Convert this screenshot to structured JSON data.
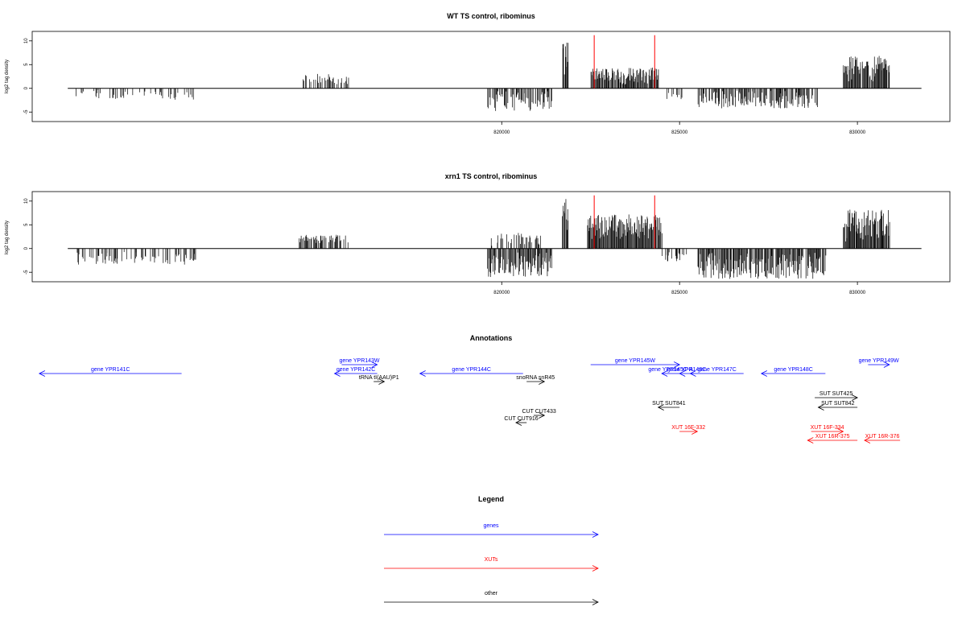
{
  "chart_data": [
    {
      "type": "bar",
      "title": "WT TS control, ribominus",
      "ylabel": "log2 tag density",
      "xlabel": "",
      "ylim": [
        -7,
        12
      ],
      "xlim": [
        806800,
        832600
      ],
      "yticks": [
        -5,
        0,
        5,
        10
      ],
      "xticks": [
        820000,
        825000,
        830000
      ],
      "xtick_labels": [
        "820000",
        "825000",
        "830000"
      ],
      "ytick_labels": [
        "-5",
        "0",
        "5",
        "10"
      ],
      "grid": false,
      "highlight_positions": [
        822600,
        824300
      ],
      "highlight_color": "#ff0000",
      "bar_color": "#000000",
      "segments": [
        {
          "start": 808000,
          "end": 811400,
          "sign": -1,
          "min": 0.3,
          "max": 2.4,
          "density": 0.25,
          "seed": 1
        },
        {
          "start": 814300,
          "end": 815700,
          "sign": 1,
          "min": 0.8,
          "max": 3.1,
          "density": 0.55,
          "seed": 2
        },
        {
          "start": 819600,
          "end": 821400,
          "sign": -1,
          "min": 0.5,
          "max": 5.0,
          "density": 0.7,
          "seed": 3
        },
        {
          "start": 821700,
          "end": 821870,
          "sign": 1,
          "min": 2.5,
          "max": 10.8,
          "density": 1.0,
          "seed": 4
        },
        {
          "start": 822500,
          "end": 824400,
          "sign": 1,
          "min": 0.8,
          "max": 4.4,
          "density": 0.95,
          "seed": 5
        },
        {
          "start": 824600,
          "end": 825100,
          "sign": -1,
          "min": 0.5,
          "max": 2.5,
          "density": 0.3,
          "seed": 6
        },
        {
          "start": 825500,
          "end": 828900,
          "sign": -1,
          "min": 0.5,
          "max": 4.3,
          "density": 0.7,
          "seed": 7
        },
        {
          "start": 829600,
          "end": 830900,
          "sign": 1,
          "min": 1.0,
          "max": 7.0,
          "density": 0.95,
          "seed": 8
        }
      ]
    },
    {
      "type": "bar",
      "title": "xrn1 TS control, ribominus",
      "ylabel": "log2 tag density",
      "xlabel": "",
      "ylim": [
        -7,
        12
      ],
      "xlim": [
        806800,
        832600
      ],
      "yticks": [
        -5,
        0,
        5,
        10
      ],
      "xticks": [
        820000,
        825000,
        830000
      ],
      "xtick_labels": [
        "820000",
        "825000",
        "830000"
      ],
      "ytick_labels": [
        "-5",
        "0",
        "5",
        "10"
      ],
      "grid": false,
      "highlight_positions": [
        822600,
        824300
      ],
      "highlight_color": "#ff0000",
      "bar_color": "#000000",
      "segments": [
        {
          "start": 808000,
          "end": 811400,
          "sign": -1,
          "min": 0.5,
          "max": 3.4,
          "density": 0.4,
          "seed": 11
        },
        {
          "start": 814300,
          "end": 815700,
          "sign": 1,
          "min": 1.0,
          "max": 2.9,
          "density": 0.55,
          "seed": 12
        },
        {
          "start": 819600,
          "end": 821400,
          "sign": -1,
          "min": 0.8,
          "max": 6.0,
          "density": 0.85,
          "seed": 13
        },
        {
          "start": 819600,
          "end": 821100,
          "sign": 1,
          "min": 0.5,
          "max": 3.3,
          "density": 0.4,
          "seed": 14
        },
        {
          "start": 821700,
          "end": 821870,
          "sign": 1,
          "min": 3.0,
          "max": 10.8,
          "density": 1.0,
          "seed": 15
        },
        {
          "start": 822400,
          "end": 824500,
          "sign": 1,
          "min": 2.0,
          "max": 7.2,
          "density": 1.0,
          "seed": 16
        },
        {
          "start": 824500,
          "end": 825200,
          "sign": -1,
          "min": 0.5,
          "max": 2.8,
          "density": 0.4,
          "seed": 17
        },
        {
          "start": 825500,
          "end": 829100,
          "sign": -1,
          "min": 0.8,
          "max": 6.4,
          "density": 0.85,
          "seed": 18
        },
        {
          "start": 829600,
          "end": 830900,
          "sign": 1,
          "min": 1.5,
          "max": 8.2,
          "density": 1.0,
          "seed": 19
        }
      ]
    }
  ],
  "annotations": {
    "title": "Annotations",
    "features": [
      {
        "label": "gene YPR141C",
        "color": "#0000ff",
        "start": 807000,
        "end": 811000,
        "strand": "-",
        "row": 1
      },
      {
        "label": "gene YPR143W",
        "color": "#0000ff",
        "start": 815500,
        "end": 816500,
        "strand": "+",
        "row": 0
      },
      {
        "label": "gene YPR142C",
        "color": "#0000ff",
        "start": 815300,
        "end": 816500,
        "strand": "-",
        "row": 1
      },
      {
        "label": "tRNA tI(AAU)P1",
        "color": "#000000",
        "start": 816400,
        "end": 816700,
        "strand": "+",
        "row": 2
      },
      {
        "label": "gene YPR144C",
        "color": "#0000ff",
        "start": 817700,
        "end": 820600,
        "strand": "-",
        "row": 1
      },
      {
        "label": "snoRNA snR45",
        "color": "#000000",
        "start": 820700,
        "end": 821200,
        "strand": "+",
        "row": 2
      },
      {
        "label": "gene YPR145W",
        "color": "#0000ff",
        "start": 822500,
        "end": 825000,
        "strand": "+",
        "row": 0
      },
      {
        "label": "gene YPR145C-A",
        "color": "#0000ff",
        "start": 824500,
        "end": 825000,
        "strand": "-",
        "row": 1
      },
      {
        "label": "gene YPR146C",
        "color": "#0000ff",
        "start": 825000,
        "end": 825400,
        "strand": "-",
        "row": 1
      },
      {
        "label": "gene YPR147C",
        "color": "#0000ff",
        "start": 825300,
        "end": 826800,
        "strand": "-",
        "row": 1
      },
      {
        "label": "gene YPR148C",
        "color": "#0000ff",
        "start": 827300,
        "end": 829100,
        "strand": "-",
        "row": 1
      },
      {
        "label": "gene YPR149W",
        "color": "#0000ff",
        "start": 830300,
        "end": 830900,
        "strand": "+",
        "row": 0
      },
      {
        "label": "SUT SUT425",
        "color": "#000000",
        "start": 828800,
        "end": 830000,
        "strand": "+",
        "row": 3
      },
      {
        "label": "SUT SUT842",
        "color": "#000000",
        "start": 828900,
        "end": 830000,
        "strand": "-",
        "row": 4
      },
      {
        "label": "SUT SUT841",
        "color": "#000000",
        "start": 824400,
        "end": 825000,
        "strand": "-",
        "row": 4
      },
      {
        "label": "CUT CUT433",
        "color": "#000000",
        "start": 820900,
        "end": 821200,
        "strand": "+",
        "row": 5
      },
      {
        "label": "CUT CUT916",
        "color": "#000000",
        "start": 820400,
        "end": 820700,
        "strand": "-",
        "row": 6
      },
      {
        "label": "XUT 16F-332",
        "color": "#ff0000",
        "start": 825000,
        "end": 825500,
        "strand": "+",
        "row": 7
      },
      {
        "label": "XUT 16F-334",
        "color": "#ff0000",
        "start": 828700,
        "end": 829600,
        "strand": "+",
        "row": 7
      },
      {
        "label": "XUT 16R-375",
        "color": "#ff0000",
        "start": 828600,
        "end": 830000,
        "strand": "-",
        "row": 8
      },
      {
        "label": "XUT 16R-376",
        "color": "#ff0000",
        "start": 830200,
        "end": 831200,
        "strand": "-",
        "row": 8
      }
    ]
  },
  "legend": {
    "title": "Legend",
    "items": [
      {
        "label": "genes",
        "color": "#0000ff"
      },
      {
        "label": "XUTs",
        "color": "#ff0000"
      },
      {
        "label": "other",
        "color": "#000000"
      }
    ]
  }
}
